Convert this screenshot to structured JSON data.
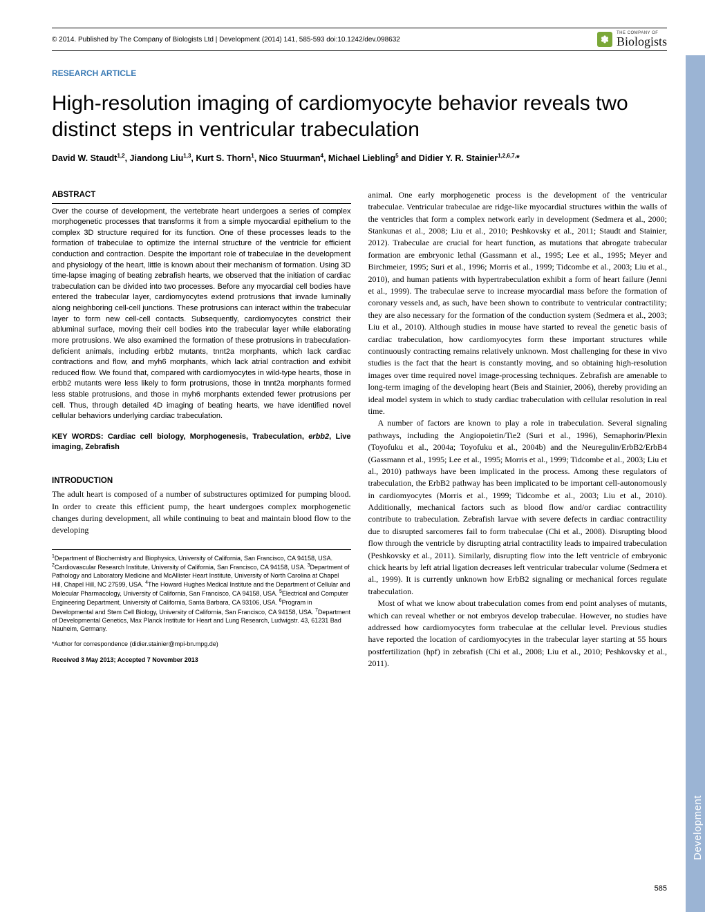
{
  "header": {
    "copyright": "© 2014. Published by The Company of Biologists Ltd | Development (2014) 141, 585-593 doi:10.1242/dev.098632",
    "logo_top": "THE COMPANY OF",
    "logo_text": "Biologists"
  },
  "article_type": "RESEARCH ARTICLE",
  "title": "High-resolution imaging of cardiomyocyte behavior reveals two distinct steps in ventricular trabeculation",
  "authors_html": "David W. Staudt<sup>1,2</sup>, Jiandong Liu<sup>1,3</sup>, Kurt S. Thorn<sup>1</sup>, Nico Stuurman<sup>4</sup>, Michael Liebling<sup>5</sup> and Didier Y. R. Stainier<sup>1,2,6,7,</sup>*",
  "abstract_head": "ABSTRACT",
  "abstract": "Over the course of development, the vertebrate heart undergoes a series of complex morphogenetic processes that transforms it from a simple myocardial epithelium to the complex 3D structure required for its function. One of these processes leads to the formation of trabeculae to optimize the internal structure of the ventricle for efficient conduction and contraction. Despite the important role of trabeculae in the development and physiology of the heart, little is known about their mechanism of formation. Using 3D time-lapse imaging of beating zebrafish hearts, we observed that the initiation of cardiac trabeculation can be divided into two processes. Before any myocardial cell bodies have entered the trabecular layer, cardiomyocytes extend protrusions that invade luminally along neighboring cell-cell junctions. These protrusions can interact within the trabecular layer to form new cell-cell contacts. Subsequently, cardiomyocytes constrict their abluminal surface, moving their cell bodies into the trabecular layer while elaborating more protrusions. We also examined the formation of these protrusions in trabeculation-deficient animals, including erbb2 mutants, tnnt2a morphants, which lack cardiac contractions and flow, and myh6 morphants, which lack atrial contraction and exhibit reduced flow. We found that, compared with cardiomyocytes in wild-type hearts, those in erbb2 mutants were less likely to form protrusions, those in tnnt2a morphants formed less stable protrusions, and those in myh6 morphants extended fewer protrusions per cell. Thus, through detailed 4D imaging of beating hearts, we have identified novel cellular behaviors underlying cardiac trabeculation.",
  "keywords_label": "KEY WORDS: ",
  "keywords": "Cardiac cell biology, Morphogenesis, Trabeculation, erbb2, Live imaging, Zebrafish",
  "intro_head": "INTRODUCTION",
  "intro_p1": "The adult heart is composed of a number of substructures optimized for pumping blood. In order to create this efficient pump, the heart undergoes complex morphogenetic changes during development, all while continuing to beat and maintain blood flow to the developing",
  "affiliations": "<sup>1</sup>Department of Biochemistry and Biophysics, University of California, San Francisco, CA 94158, USA. <sup>2</sup>Cardiovascular Research Institute, University of California, San Francisco, CA 94158, USA. <sup>3</sup>Department of Pathology and Laboratory Medicine and McAllister Heart Institute, University of North Carolina at Chapel Hill, Chapel Hill, NC 27599, USA. <sup>4</sup>The Howard Hughes Medical Institute and the Department of Cellular and Molecular Pharmacology, University of California, San Francisco, CA 94158, USA. <sup>5</sup>Electrical and Computer Engineering Department, University of California, Santa Barbara, CA 93106, USA. <sup>6</sup>Program in Developmental and Stem Cell Biology, University of California, San Francisco, CA 94158, USA. <sup>7</sup>Department of Developmental Genetics, Max Planck Institute for Heart and Lung Research, Ludwigstr. 43, 61231 Bad Nauheim, Germany.",
  "correspondence": "*Author for correspondence (didier.stainier@mpi-bn.mpg.de)",
  "received": "Received 3 May 2013; Accepted 7 November 2013",
  "body_p1": "animal. One early morphogenetic process is the development of the ventricular trabeculae. Ventricular trabeculae are ridge-like myocardial structures within the walls of the ventricles that form a complex network early in development (Sedmera et al., 2000; Stankunas et al., 2008; Liu et al., 2010; Peshkovsky et al., 2011; Staudt and Stainier, 2012). Trabeculae are crucial for heart function, as mutations that abrogate trabecular formation are embryonic lethal (Gassmann et al., 1995; Lee et al., 1995; Meyer and Birchmeier, 1995; Suri et al., 1996; Morris et al., 1999; Tidcombe et al., 2003; Liu et al., 2010), and human patients with hypertrabeculation exhibit a form of heart failure (Jenni et al., 1999). The trabeculae serve to increase myocardial mass before the formation of coronary vessels and, as such, have been shown to contribute to ventricular contractility; they are also necessary for the formation of the conduction system (Sedmera et al., 2003; Liu et al., 2010). Although studies in mouse have started to reveal the genetic basis of cardiac trabeculation, how cardiomyocytes form these important structures while continuously contracting remains relatively unknown. Most challenging for these in vivo studies is the fact that the heart is constantly moving, and so obtaining high-resolution images over time required novel image-processing techniques. Zebrafish are amenable to long-term imaging of the developing heart (Beis and Stainier, 2006), thereby providing an ideal model system in which to study cardiac trabeculation with cellular resolution in real time.",
  "body_p2": "A number of factors are known to play a role in trabeculation. Several signaling pathways, including the Angiopoietin/Tie2 (Suri et al., 1996), Semaphorin/Plexin (Toyofuku et al., 2004a; Toyofuku et al., 2004b) and the Neuregulin/ErbB2/ErbB4 (Gassmann et al., 1995; Lee et al., 1995; Morris et al., 1999; Tidcombe et al., 2003; Liu et al., 2010) pathways have been implicated in the process. Among these regulators of trabeculation, the ErbB2 pathway has been implicated to be important cell-autonomously in cardiomyocytes (Morris et al., 1999; Tidcombe et al., 2003; Liu et al., 2010). Additionally, mechanical factors such as blood flow and/or cardiac contractility contribute to trabeculation. Zebrafish larvae with severe defects in cardiac contractility due to disrupted sarcomeres fail to form trabeculae (Chi et al., 2008). Disrupting blood flow through the ventricle by disrupting atrial contractility leads to impaired trabeculation (Peshkovsky et al., 2011). Similarly, disrupting flow into the left ventricle of embryonic chick hearts by left atrial ligation decreases left ventricular trabecular volume (Sedmera et al., 1999). It is currently unknown how ErbB2 signaling or mechanical forces regulate trabeculation.",
  "body_p3": "Most of what we know about trabeculation comes from end point analyses of mutants, which can reveal whether or not embryos develop trabeculae. However, no studies have addressed how cardiomyocytes form trabeculae at the cellular level. Previous studies have reported the location of cardiomyocytes in the trabecular layer starting at 55 hours postfertilization (hpf) in zebrafish (Chi et al., 2008; Liu et al., 2010; Peshkovsky et al., 2011).",
  "side_tab": "Development",
  "page_number": "585",
  "colors": {
    "accent_blue": "#3b7bb5",
    "side_tab_bg": "#9bb4d4",
    "logo_green": "#7ba838"
  }
}
